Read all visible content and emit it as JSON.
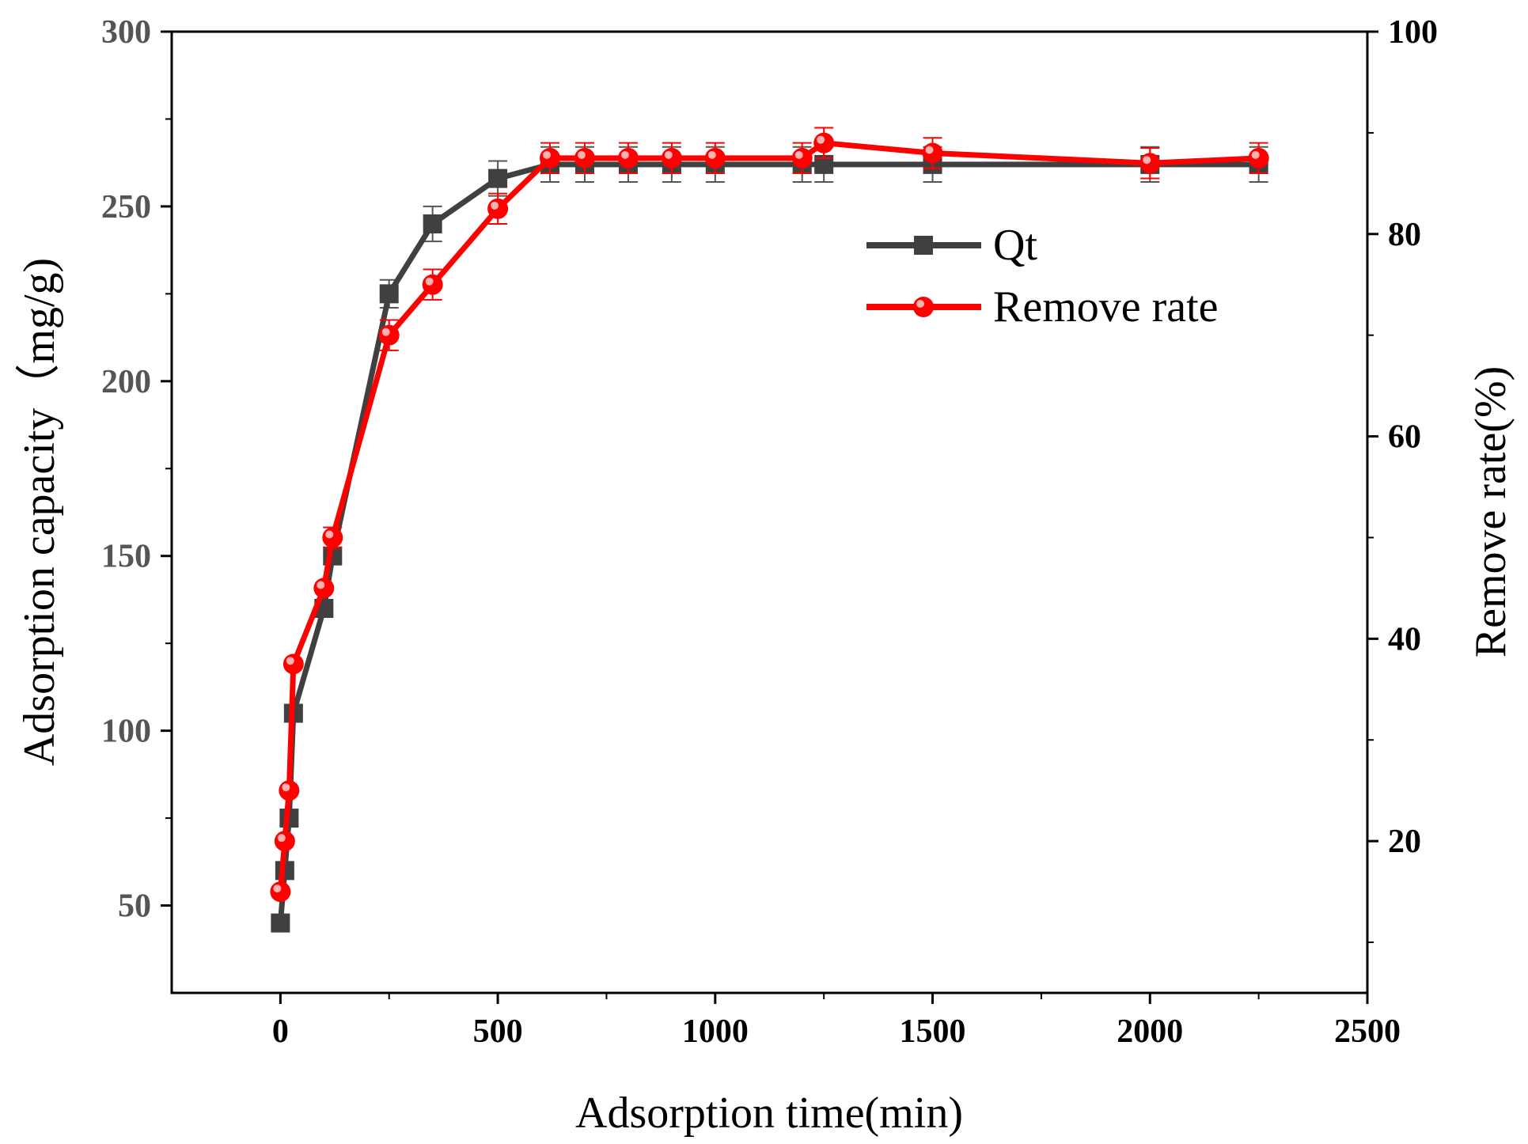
{
  "chart_data": {
    "type": "line",
    "title": "",
    "xlabel": "Adsorption time(min)",
    "ylabel": "Adsorption capacity（mg/g)",
    "y2label": "Remove rate(%)",
    "xlim": [
      -250,
      2500
    ],
    "ylim": [
      25,
      300
    ],
    "y2lim": [
      5,
      100
    ],
    "x_ticks": [
      "0",
      "500",
      "1000",
      "1500",
      "2000",
      "2500"
    ],
    "y_ticks": [
      "50",
      "100",
      "150",
      "200",
      "250",
      "300"
    ],
    "y2_ticks": [
      "20",
      "40",
      "60",
      "80",
      "100"
    ],
    "legend_position": "upper-right",
    "series": [
      {
        "name": "Qt",
        "axis": "left",
        "color": "#404040",
        "marker": "square",
        "x": [
          0,
          10,
          20,
          30,
          100,
          120,
          250,
          350,
          500,
          620,
          700,
          800,
          900,
          1000,
          1200,
          1250,
          1500,
          2000,
          2250
        ],
        "values": [
          45,
          60,
          75,
          105,
          135,
          150,
          225,
          245,
          258,
          262,
          262,
          262,
          262,
          262,
          262,
          262,
          262,
          262,
          262
        ],
        "error": [
          0,
          0,
          0,
          0,
          0,
          0,
          4,
          5,
          5,
          5,
          5,
          5,
          5,
          5,
          5,
          5,
          5,
          5,
          5
        ]
      },
      {
        "name": "Remove rate",
        "axis": "right",
        "color": "#ff0000",
        "marker": "circle",
        "x": [
          0,
          10,
          20,
          30,
          100,
          120,
          250,
          350,
          500,
          620,
          700,
          800,
          900,
          1000,
          1200,
          1250,
          1500,
          2000,
          2250
        ],
        "values": [
          15,
          20,
          25,
          37.5,
          45,
          50,
          70,
          75,
          82.5,
          87.5,
          87.5,
          87.5,
          87.5,
          87.5,
          87.5,
          89,
          88,
          87,
          87.5
        ],
        "error": [
          0,
          0,
          0,
          0,
          0,
          1,
          1.5,
          1.5,
          1.5,
          1.5,
          1.5,
          1.5,
          1.5,
          1.5,
          1.5,
          1.5,
          1.5,
          1.5,
          1.5
        ]
      }
    ]
  }
}
